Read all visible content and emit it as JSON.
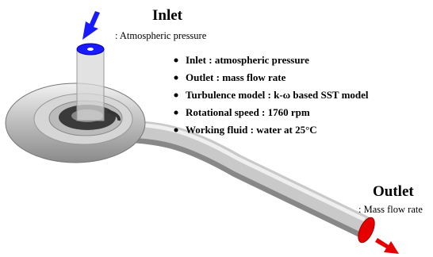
{
  "inlet": {
    "title": "Inlet",
    "note": ": Atmospheric pressure"
  },
  "conditions": [
    "Inlet : atmospheric pressure",
    "Outlet : mass flow rate",
    "Turbulence model : k-ω based SST model",
    "Rotational speed : 1760 rpm",
    "Working fluid : water at 25°C"
  ],
  "outlet": {
    "title": "Outlet",
    "note": ": Mass flow rate"
  }
}
